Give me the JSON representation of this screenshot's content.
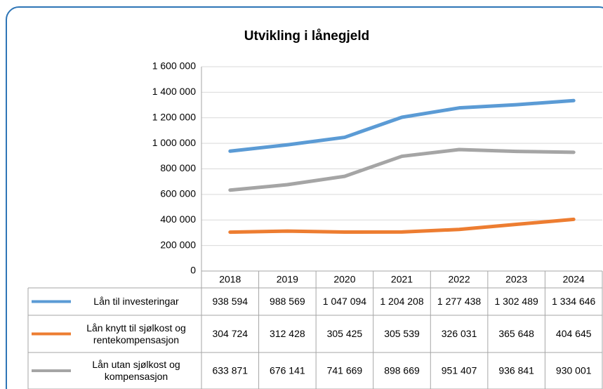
{
  "chart_data": {
    "type": "line",
    "title": "Utvikling i lånegjeld",
    "categories": [
      "2018",
      "2019",
      "2020",
      "2021",
      "2022",
      "2023",
      "2024"
    ],
    "series": [
      {
        "name": "Lån til investeringar",
        "color": "#5b9bd5",
        "values": [
          938594,
          988569,
          1047094,
          1204208,
          1277438,
          1302489,
          1334646
        ],
        "value_labels": [
          "938 594",
          "988 569",
          "1 047 094",
          "1 204 208",
          "1 277 438",
          "1 302 489",
          "1 334 646"
        ]
      },
      {
        "name": "Lån knytt til sjølkost og rentekompensasjon",
        "color": "#ed7d31",
        "values": [
          304724,
          312428,
          305425,
          305539,
          326031,
          365648,
          404645
        ],
        "value_labels": [
          "304 724",
          "312 428",
          "305 425",
          "305 539",
          "326 031",
          "365 648",
          "404 645"
        ]
      },
      {
        "name": "Lån utan sjølkost og kompensasjon",
        "color": "#a5a5a5",
        "values": [
          633871,
          676141,
          741669,
          898669,
          951407,
          936841,
          930001
        ],
        "value_labels": [
          "633 871",
          "676 141",
          "741 669",
          "898 669",
          "951 407",
          "936 841",
          "930 001"
        ]
      }
    ],
    "ylim": [
      0,
      1600000
    ],
    "yticks": [
      0,
      {
        "value": 200000,
        "label": "200 000"
      },
      {
        "value": 400000,
        "label": "400 000"
      },
      {
        "value": 600000,
        "label": "600 000"
      },
      {
        "value": 800000,
        "label": "800 000"
      },
      {
        "value": 1000000,
        "label": "1 000 000"
      },
      {
        "value": 1200000,
        "label": "1 200 000"
      },
      {
        "value": 1400000,
        "label": "1 400 000"
      },
      {
        "value": 1600000,
        "label": "1 600 000"
      }
    ],
    "grid": true
  }
}
